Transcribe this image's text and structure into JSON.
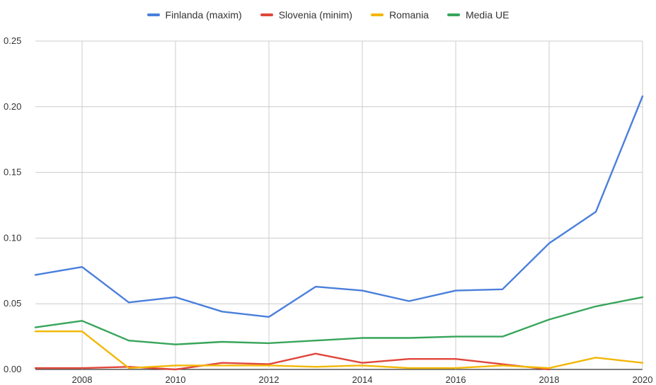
{
  "chart_data": {
    "type": "line",
    "title": "",
    "xlabel": "",
    "ylabel": "",
    "x": [
      2007,
      2008,
      2009,
      2010,
      2011,
      2012,
      2013,
      2014,
      2015,
      2016,
      2017,
      2018,
      2019,
      2020
    ],
    "x_ticks": [
      "2008",
      "2010",
      "2012",
      "2014",
      "2016",
      "2018",
      "2020"
    ],
    "x_tick_values": [
      2008,
      2010,
      2012,
      2014,
      2016,
      2018,
      2020
    ],
    "xlim": [
      2007,
      2020
    ],
    "y_ticks": [
      "0.00",
      "0.05",
      "0.10",
      "0.15",
      "0.20",
      "0.25"
    ],
    "y_tick_values": [
      0,
      0.05,
      0.1,
      0.15,
      0.2,
      0.25
    ],
    "ylim": [
      0,
      0.25
    ],
    "grid": true,
    "legend_position": "top",
    "series": [
      {
        "name": "Finlanda (maxim)",
        "color": "#4a7fdc",
        "values": [
          0.072,
          0.078,
          0.051,
          0.055,
          0.044,
          0.04,
          0.063,
          0.06,
          0.052,
          0.06,
          0.061,
          0.096,
          0.12,
          0.208
        ]
      },
      {
        "name": "Slovenia (minim)",
        "color": "#e0463a",
        "values": [
          0.001,
          0.001,
          0.002,
          0.0,
          0.005,
          0.004,
          0.012,
          0.005,
          0.008,
          0.008,
          0.004,
          0.0,
          null,
          null
        ]
      },
      {
        "name": "Romania",
        "color": "#f2b705",
        "values": [
          0.029,
          0.029,
          0.001,
          0.003,
          0.003,
          0.003,
          0.002,
          0.003,
          0.001,
          0.001,
          0.003,
          0.001,
          0.009,
          0.005
        ]
      },
      {
        "name": "Media UE",
        "color": "#37a55a",
        "values": [
          0.032,
          0.037,
          0.022,
          0.019,
          0.021,
          0.02,
          0.022,
          0.024,
          0.024,
          0.025,
          0.025,
          0.038,
          0.048,
          0.055
        ]
      }
    ]
  }
}
